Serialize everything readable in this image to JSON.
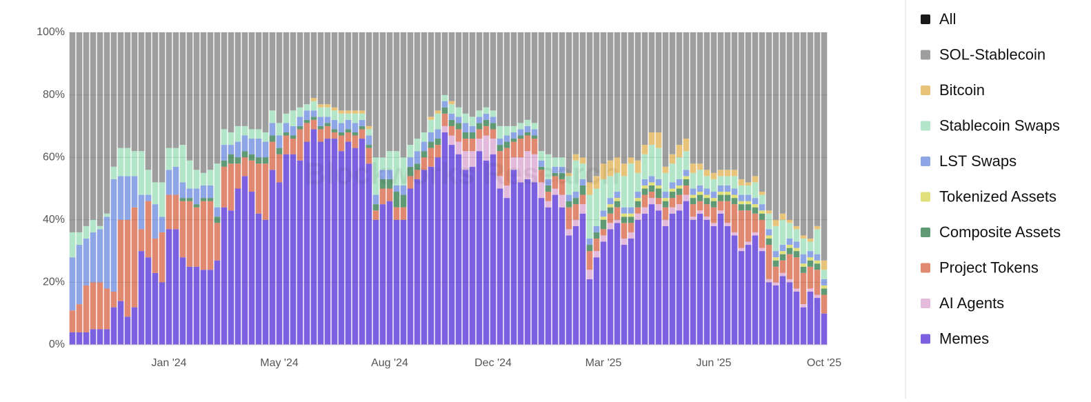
{
  "chart_data": {
    "type": "stacked_bar",
    "watermark": "Blockworks Research",
    "ylim": [
      0,
      100
    ],
    "yticks": [
      {
        "value": 0,
        "label": "0%"
      },
      {
        "value": 20,
        "label": "20%"
      },
      {
        "value": 40,
        "label": "40%"
      },
      {
        "value": 60,
        "label": "60%"
      },
      {
        "value": 80,
        "label": "80%"
      },
      {
        "value": 100,
        "label": "100%"
      }
    ],
    "grid": true,
    "legend_position": "right",
    "legend_all": {
      "name": "All",
      "color": "#1a1a1a"
    },
    "categories": [
      null,
      null,
      null,
      null,
      null,
      null,
      null,
      null,
      null,
      null,
      null,
      null,
      null,
      null,
      "Jan '24",
      null,
      null,
      null,
      null,
      null,
      null,
      null,
      null,
      null,
      null,
      null,
      null,
      null,
      null,
      null,
      "May '24",
      null,
      null,
      null,
      null,
      null,
      null,
      null,
      null,
      null,
      null,
      null,
      null,
      null,
      null,
      null,
      "Aug '24",
      null,
      null,
      null,
      null,
      null,
      null,
      null,
      null,
      null,
      null,
      null,
      null,
      null,
      null,
      "Dec '24",
      null,
      null,
      null,
      null,
      null,
      null,
      null,
      null,
      null,
      null,
      null,
      null,
      null,
      null,
      null,
      "Mar '25",
      null,
      null,
      null,
      null,
      null,
      null,
      null,
      null,
      null,
      null,
      null,
      null,
      null,
      null,
      null,
      "Jun '25",
      null,
      null,
      null,
      null,
      null,
      null,
      null,
      null,
      null,
      null,
      null,
      null,
      null,
      null,
      null,
      "Oct '25"
    ],
    "series": [
      {
        "name": "SOL-Stablecoin",
        "color": "#9e9e9e",
        "values": [
          64,
          64,
          62,
          60,
          62,
          58,
          43,
          37,
          37,
          38,
          38,
          44,
          48,
          48,
          37,
          37,
          36,
          41,
          44,
          45,
          44,
          42,
          31,
          32,
          30,
          30,
          31,
          31,
          32,
          25,
          29,
          26,
          25,
          24,
          23,
          21,
          23,
          23,
          24,
          25,
          25,
          25,
          25,
          30,
          40,
          40,
          38,
          38,
          40,
          36,
          34,
          32,
          27,
          25,
          20,
          22,
          24,
          26,
          27,
          25,
          24,
          25,
          30,
          30,
          30,
          29,
          28,
          29,
          38,
          39,
          40,
          40,
          45,
          39,
          40,
          48,
          46,
          42,
          41,
          40,
          42,
          40,
          41,
          36,
          32,
          32,
          43,
          39,
          36,
          34,
          42,
          42,
          44,
          45,
          44,
          44,
          44,
          47,
          48,
          46,
          51,
          57,
          60,
          58,
          60,
          62,
          65,
          66,
          62,
          73
        ]
      },
      {
        "name": "Bitcoin",
        "color": "#e8c47a",
        "values": [
          0,
          0,
          0,
          0,
          0,
          0,
          0,
          0,
          0,
          0,
          0,
          0,
          0,
          0,
          0,
          0,
          0,
          0,
          0,
          0,
          0,
          0,
          0,
          0,
          0,
          0,
          0,
          0,
          0,
          0,
          0,
          0,
          0,
          0,
          0,
          1,
          1,
          1,
          1,
          1,
          1,
          1,
          1,
          1,
          0,
          0,
          0,
          0,
          0,
          0,
          0,
          0,
          1,
          1,
          0,
          1,
          0,
          0,
          0,
          0,
          0,
          0,
          0,
          0,
          0,
          0,
          0,
          0,
          0,
          0,
          0,
          0,
          1,
          2,
          2,
          4,
          4,
          5,
          5,
          5,
          4,
          2,
          4,
          3,
          4,
          5,
          2,
          3,
          4,
          4,
          3,
          2,
          2,
          2,
          2,
          2,
          2,
          2,
          1,
          2,
          1,
          1,
          2,
          2,
          1,
          1,
          1,
          1,
          1,
          3
        ]
      },
      {
        "name": "Stablecoin Swaps",
        "color": "#b3e6c8",
        "values": [
          8,
          4,
          4,
          4,
          1,
          1,
          4,
          9,
          9,
          8,
          14,
          8,
          7,
          11,
          7,
          6,
          12,
          9,
          6,
          4,
          5,
          14,
          5,
          4,
          5,
          3,
          3,
          3,
          3,
          4,
          4,
          3,
          5,
          3,
          2,
          3,
          3,
          3,
          3,
          3,
          2,
          3,
          2,
          2,
          12,
          4,
          6,
          11,
          9,
          4,
          4,
          3,
          4,
          5,
          2,
          3,
          3,
          3,
          3,
          2,
          2,
          2,
          4,
          3,
          2,
          2,
          2,
          2,
          3,
          8,
          3,
          3,
          6,
          10,
          5,
          14,
          12,
          10,
          7,
          6,
          10,
          14,
          6,
          8,
          10,
          10,
          6,
          6,
          7,
          6,
          5,
          5,
          4,
          4,
          3,
          3,
          4,
          3,
          3,
          5,
          3,
          5,
          8,
          8,
          5,
          4,
          5,
          3,
          8,
          3
        ]
      },
      {
        "name": "LST Swaps",
        "color": "#8fa6e6",
        "values": [
          17,
          19,
          15,
          16,
          17,
          23,
          36,
          14,
          14,
          10,
          11,
          2,
          11,
          5,
          8,
          9,
          5,
          3,
          5,
          4,
          4,
          3,
          5,
          3,
          5,
          5,
          5,
          6,
          5,
          4,
          4,
          3,
          3,
          3,
          3,
          2,
          3,
          2,
          3,
          3,
          3,
          3,
          2,
          3,
          3,
          3,
          3,
          2,
          3,
          3,
          4,
          3,
          3,
          3,
          2,
          2,
          2,
          3,
          2,
          2,
          2,
          2,
          2,
          2,
          2,
          2,
          2,
          2,
          2,
          2,
          2,
          2,
          2,
          2,
          2,
          2,
          2,
          2,
          2,
          2,
          2,
          2,
          2,
          2,
          2,
          2,
          2,
          2,
          2,
          2,
          2,
          2,
          2,
          2,
          2,
          2,
          2,
          2,
          2,
          2,
          2,
          2,
          2,
          2,
          2,
          2,
          3,
          2,
          2,
          2
        ]
      },
      {
        "name": "Tokenized Assets",
        "color": "#dfe07a",
        "values": [
          0,
          0,
          0,
          0,
          0,
          0,
          0,
          0,
          0,
          0,
          0,
          0,
          0,
          0,
          0,
          0,
          0,
          0,
          0,
          0,
          0,
          0,
          0,
          0,
          0,
          0,
          0,
          0,
          0,
          0,
          0,
          0,
          0,
          0,
          0,
          0,
          0,
          0,
          0,
          0,
          0,
          0,
          0,
          0,
          0,
          0,
          0,
          0,
          0,
          0,
          0,
          0,
          0,
          0,
          0,
          0,
          0,
          0,
          0,
          0,
          0,
          0,
          0,
          0,
          0,
          0,
          0,
          0,
          0,
          0,
          0,
          0,
          0,
          0,
          0,
          0,
          0,
          1,
          1,
          1,
          1,
          1,
          1,
          1,
          1,
          1,
          1,
          1,
          1,
          1,
          1,
          1,
          1,
          1,
          1,
          1,
          1,
          1,
          1,
          1,
          1,
          1,
          1,
          1,
          1,
          1,
          1,
          1,
          1,
          1
        ]
      },
      {
        "name": "Composite Assets",
        "color": "#5f9a74",
        "values": [
          0,
          0,
          0,
          0,
          0,
          0,
          0,
          0,
          0,
          0,
          0,
          0,
          0,
          0,
          0,
          0,
          1,
          1,
          1,
          1,
          1,
          2,
          2,
          3,
          2,
          2,
          2,
          2,
          2,
          2,
          2,
          1,
          1,
          1,
          1,
          1,
          1,
          1,
          1,
          1,
          1,
          1,
          1,
          1,
          2,
          3,
          3,
          5,
          4,
          3,
          2,
          2,
          2,
          2,
          2,
          2,
          2,
          2,
          2,
          2,
          2,
          2,
          2,
          2,
          1,
          1,
          1,
          1,
          1,
          2,
          1,
          2,
          2,
          2,
          3,
          2,
          2,
          3,
          2,
          2,
          2,
          2,
          2,
          2,
          2,
          3,
          2,
          2,
          2,
          2,
          2,
          2,
          2,
          2,
          2,
          2,
          2,
          2,
          2,
          2,
          2,
          2,
          2,
          2,
          2,
          2,
          2,
          2,
          2,
          2
        ]
      },
      {
        "name": "Project Tokens",
        "color": "#e08870",
        "values": [
          7,
          9,
          15,
          15,
          15,
          13,
          5,
          26,
          31,
          32,
          7,
          18,
          11,
          16,
          11,
          11,
          18,
          21,
          19,
          22,
          22,
          12,
          13,
          15,
          8,
          6,
          10,
          16,
          18,
          9,
          9,
          6,
          5,
          10,
          6,
          3,
          4,
          4,
          2,
          5,
          3,
          4,
          3,
          5,
          3,
          5,
          4,
          4,
          4,
          4,
          3,
          4,
          6,
          4,
          4,
          3,
          4,
          4,
          4,
          3,
          3,
          3,
          8,
          12,
          5,
          6,
          5,
          5,
          4,
          3,
          4,
          5,
          7,
          5,
          3,
          6,
          4,
          2,
          3,
          4,
          5,
          3,
          2,
          4,
          2,
          2,
          4,
          3,
          3,
          3,
          4,
          3,
          4,
          5,
          3,
          7,
          9,
          12,
          10,
          6,
          9,
          11,
          5,
          4,
          8,
          10,
          10,
          7,
          8,
          6
        ]
      },
      {
        "name": "AI Agents",
        "color": "#e3b9dc",
        "values": [
          0,
          0,
          0,
          0,
          0,
          0,
          0,
          0,
          0,
          0,
          0,
          0,
          0,
          0,
          0,
          0,
          0,
          0,
          0,
          0,
          0,
          0,
          0,
          0,
          0,
          0,
          0,
          0,
          0,
          0,
          0,
          0,
          0,
          0,
          0,
          0,
          0,
          0,
          0,
          0,
          0,
          0,
          0,
          0,
          0,
          0,
          0,
          0,
          0,
          0,
          0,
          0,
          0,
          0,
          2,
          3,
          4,
          6,
          5,
          4,
          8,
          5,
          4,
          4,
          4,
          8,
          9,
          9,
          5,
          2,
          2,
          4,
          2,
          2,
          3,
          3,
          2,
          2,
          2,
          1,
          2,
          2,
          2,
          2,
          2,
          2,
          2,
          2,
          2,
          2,
          1,
          1,
          1,
          1,
          1,
          1,
          1,
          1,
          1,
          1,
          1,
          1,
          1,
          1,
          1,
          1,
          1,
          1,
          1,
          0
        ]
      },
      {
        "name": "Memes",
        "color": "#7b61e0",
        "values": [
          4,
          4,
          4,
          5,
          5,
          5,
          12,
          14,
          9,
          12,
          30,
          28,
          23,
          20,
          37,
          37,
          28,
          25,
          25,
          24,
          24,
          27,
          44,
          43,
          50,
          54,
          49,
          42,
          40,
          56,
          52,
          61,
          61,
          59,
          65,
          69,
          65,
          66,
          66,
          62,
          65,
          63,
          66,
          58,
          40,
          45,
          46,
          40,
          40,
          50,
          53,
          56,
          57,
          60,
          68,
          64,
          61,
          56,
          57,
          62,
          59,
          61,
          50,
          47,
          56,
          52,
          53,
          52,
          47,
          44,
          48,
          44,
          35,
          38,
          42,
          21,
          28,
          33,
          37,
          39,
          32,
          34,
          40,
          42,
          45,
          43,
          38,
          42,
          43,
          46,
          40,
          42,
          40,
          38,
          42,
          38,
          35,
          30,
          32,
          35,
          30,
          20,
          19,
          22,
          20,
          17,
          12,
          17,
          15,
          10
        ]
      }
    ]
  }
}
